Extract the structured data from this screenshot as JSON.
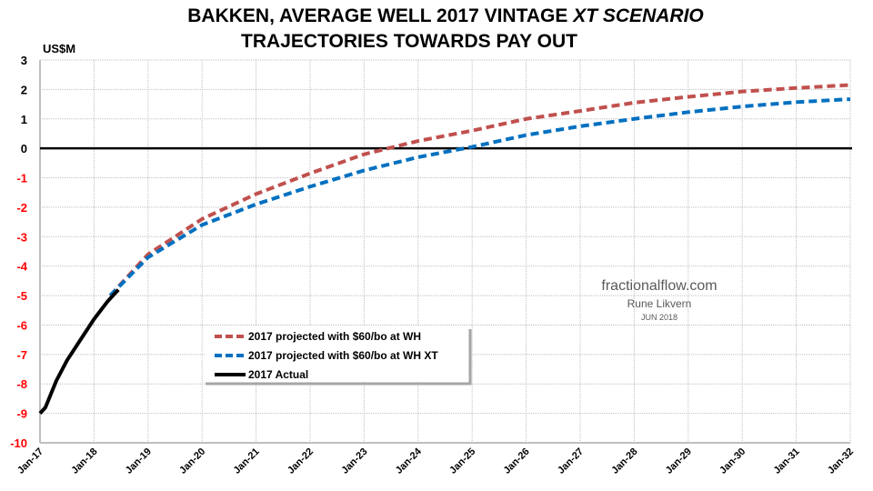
{
  "title_line1_plain": "BAKKEN, AVERAGE WELL 2017 VINTAGE ",
  "title_line1_italic": "XT SCENARIO",
  "title_line2": "TRAJECTORIES TOWARDS PAY OUT",
  "watermark": {
    "site": "fractionalflow.com",
    "author": "Rune Likvern",
    "date": "JUN 2018"
  },
  "chart_data": {
    "type": "line",
    "ylabel": "US$M",
    "ylim": [
      -10,
      3
    ],
    "yticks": [
      3,
      2,
      1,
      0,
      -1,
      -2,
      -3,
      -4,
      -5,
      -6,
      -7,
      -8,
      -9,
      -10
    ],
    "negative_tick_color": "#ff0000",
    "xlim": [
      2017,
      2032
    ],
    "xticks": [
      "Jan-17",
      "Jan-18",
      "Jan-19",
      "Jan-20",
      "Jan-21",
      "Jan-22",
      "Jan-23",
      "Jan-24",
      "Jan-25",
      "Jan-26",
      "Jan-27",
      "Jan-28",
      "Jan-29",
      "Jan-30",
      "Jan-31",
      "Jan-32"
    ],
    "grid": true,
    "legend_placement": "lower-left",
    "series": [
      {
        "name": "2017 projected with $60/bo at WH",
        "color": "#c0504d",
        "style": "dashed",
        "x": [
          2018.3,
          2019,
          2020,
          2021,
          2022,
          2023,
          2024,
          2025,
          2026,
          2027,
          2028,
          2029,
          2030,
          2031,
          2032
        ],
        "y": [
          -5.0,
          -3.6,
          -2.4,
          -1.55,
          -0.85,
          -0.2,
          0.25,
          0.6,
          1.0,
          1.27,
          1.55,
          1.75,
          1.93,
          2.05,
          2.15
        ]
      },
      {
        "name": "2017 projected with $60/bo at WH XT",
        "color": "#0070c0",
        "style": "dashed",
        "x": [
          2018.3,
          2019,
          2020,
          2021,
          2022,
          2023,
          2024,
          2025,
          2026,
          2027,
          2028,
          2029,
          2030,
          2031,
          2032
        ],
        "y": [
          -5.0,
          -3.7,
          -2.6,
          -1.9,
          -1.3,
          -0.75,
          -0.3,
          0.05,
          0.45,
          0.75,
          1.0,
          1.23,
          1.42,
          1.57,
          1.67
        ]
      },
      {
        "name": "2017 Actual",
        "color": "#000000",
        "style": "solid",
        "x": [
          2017.0,
          2017.1,
          2017.3,
          2017.5,
          2017.75,
          2018.0,
          2018.25,
          2018.45
        ],
        "y": [
          -9.0,
          -8.8,
          -7.9,
          -7.2,
          -6.5,
          -5.8,
          -5.2,
          -4.8
        ]
      }
    ]
  }
}
